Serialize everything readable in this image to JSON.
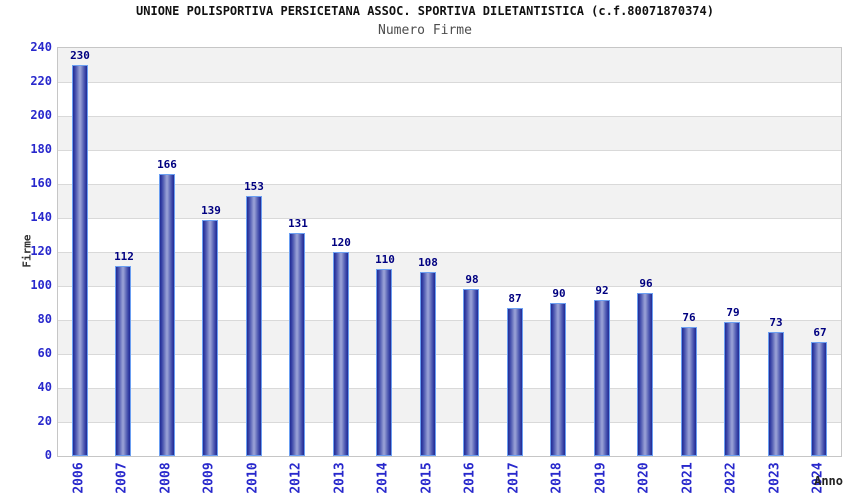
{
  "chart_data": {
    "type": "bar",
    "title": "UNIONE POLISPORTIVA PERSICETANA ASSOC. SPORTIVA DILETANTISTICA (c.f.80071870374)",
    "subtitle": "Numero Firme",
    "xlabel": "Anno",
    "ylabel": "Firme",
    "categories": [
      "2006",
      "2007",
      "2008",
      "2009",
      "2010",
      "2012",
      "2013",
      "2014",
      "2015",
      "2016",
      "2017",
      "2018",
      "2019",
      "2020",
      "2021",
      "2022",
      "2023",
      "2024"
    ],
    "values": [
      230,
      112,
      166,
      139,
      153,
      131,
      120,
      110,
      108,
      98,
      87,
      90,
      92,
      96,
      76,
      79,
      73,
      67
    ],
    "ylim": [
      0,
      240
    ],
    "ytick_step": 20,
    "yticks": [
      240,
      220,
      200,
      180,
      160,
      140,
      120,
      100,
      80,
      60,
      40,
      20,
      0
    ],
    "grid": true,
    "legend_position": "none",
    "colors": {
      "bar_dark": "#242e93",
      "bar_light": "#9ba3d8",
      "bar_edge": "#6b9ff2",
      "value_label": "#000080",
      "tick_label": "#2828cc",
      "band_gray": "#f2f2f2",
      "band_white": "#ffffff",
      "gridline": "#d9d9d9",
      "plot_border": "#c6c6c6",
      "axis_title": "#333333"
    }
  }
}
